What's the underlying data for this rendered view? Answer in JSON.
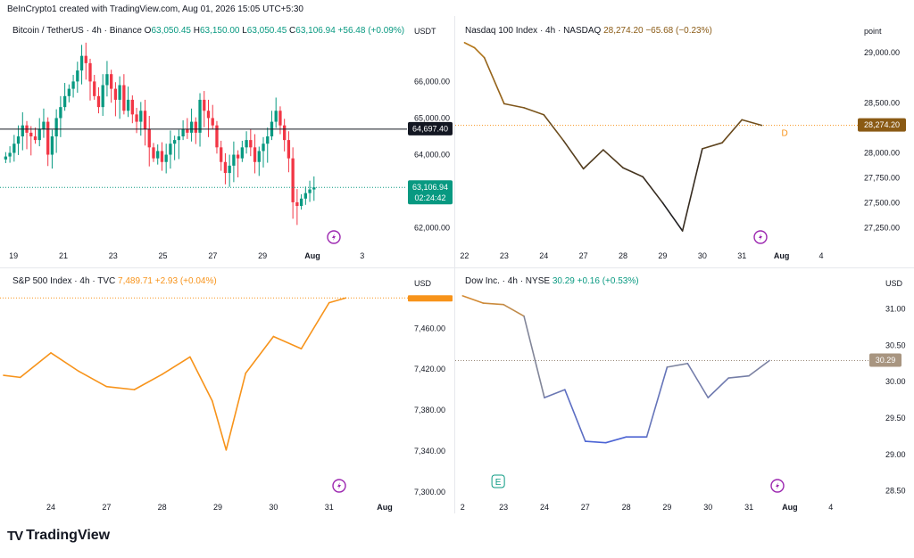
{
  "header": {
    "text": "BeInCrypto1 created with TradingView.com, Aug 01, 2026 15:05 UTC+5:30"
  },
  "footer": {
    "brand": "TradingView",
    "logo": "TV"
  },
  "colors": {
    "up": "#089981",
    "down": "#f23645",
    "orange": "#f7931a",
    "brown": "#8a5a14",
    "text": "#131722"
  },
  "chart_data": [
    {
      "type": "candlestick",
      "legend": {
        "symbol": "Bitcoin / TetherUS · 4h · Binance",
        "o_label": "O",
        "o": "63,050.45",
        "h_label": "H",
        "h": "63,150.00",
        "l_label": "L",
        "l": "63,050.45",
        "c_label": "C",
        "c": "63,106.94",
        "change": "+56.48 (+0.09%)"
      },
      "unit": "USDT",
      "y_ticks": [
        "66,000.00",
        "65,000.00",
        "64,000.00",
        "62,000.00"
      ],
      "y_tick_values": [
        66000,
        65000,
        64000,
        62000
      ],
      "ylim": [
        61700,
        67300
      ],
      "x_ticks": [
        "19",
        "21",
        "23",
        "25",
        "27",
        "29",
        "Aug",
        "3"
      ],
      "x_tick_values": [
        0,
        2,
        4,
        6,
        8,
        10,
        12,
        14
      ],
      "xlim": [
        -0.4,
        15.8
      ],
      "hline": {
        "value": 64697.4,
        "label": "64,697.40"
      },
      "price_line": {
        "value": 63106.94,
        "label": "63,106.94",
        "countdown": "02:24:42"
      },
      "closes": [
        63950,
        64050,
        64300,
        64500,
        64800,
        64600,
        64500,
        64400,
        64700,
        64900,
        64000,
        64500,
        65000,
        65300,
        65600,
        65800,
        66000,
        66300,
        66700,
        66500,
        66000,
        65600,
        65300,
        65900,
        66200,
        65800,
        65500,
        65900,
        65200,
        65500,
        65100,
        64900,
        65200,
        64700,
        64200,
        63900,
        64100,
        63800,
        64000,
        64300,
        64400,
        64500,
        64700,
        64600,
        64900,
        64600,
        65500,
        65200,
        65000,
        64800,
        64200,
        63800,
        63500,
        63700,
        64000,
        63900,
        64200,
        64400,
        64200,
        63800,
        64100,
        64300,
        64500,
        64900,
        65200,
        64800,
        64400,
        63900,
        62700,
        62600,
        62800,
        62950,
        63050,
        63106.94
      ]
    },
    {
      "type": "line",
      "legend": {
        "symbol": "Nasdaq 100 Index · 4h · NASDAQ",
        "value": "28,274.20",
        "change": "−65.68 (−0.23%)"
      },
      "unit": "point",
      "y_ticks": [
        "29,000.00",
        "28,500.00",
        "28,000.00",
        "27,750.00",
        "27,500.00",
        "27,250.00"
      ],
      "y_tick_values": [
        29000,
        28500,
        28000,
        27750,
        27500,
        27250
      ],
      "ylim": [
        27140,
        29170
      ],
      "x_ticks": [
        "22",
        "23",
        "24",
        "27",
        "28",
        "29",
        "30",
        "31",
        "Aug",
        "4"
      ],
      "x_tick_values": [
        0,
        1,
        2,
        3,
        4,
        5,
        6,
        7,
        8,
        9
      ],
      "xlim": [
        -0.1,
        9.9
      ],
      "x": [
        0,
        0.25,
        0.5,
        1,
        1.5,
        2,
        2.5,
        3,
        3.5,
        4,
        4.5,
        5,
        5.5,
        6,
        6.5,
        7,
        7.5
      ],
      "y": [
        29100,
        29050,
        28950,
        28490,
        28450,
        28380,
        28120,
        27840,
        28030,
        27850,
        27760,
        27500,
        27220,
        28040,
        28100,
        28330,
        28274.2
      ],
      "last_label": "28,274.20",
      "event": "D"
    },
    {
      "type": "line",
      "legend": {
        "symbol": "S&P 500 Index · 4h · TVC",
        "value": "7,489.71",
        "change": "+2.93 (+0.04%)"
      },
      "unit": "USD",
      "y_ticks": [
        "7,460.00",
        "7,420.00",
        "7,380.00",
        "7,340.00",
        "7,300.00"
      ],
      "y_tick_values": [
        7460,
        7420,
        7380,
        7340,
        7300
      ],
      "ylim": [
        7299,
        7496
      ],
      "x_ticks": [
        "24",
        "27",
        "28",
        "29",
        "30",
        "31",
        "Aug"
      ],
      "x_tick_values": [
        0,
        1,
        2,
        3,
        4,
        5,
        6
      ],
      "xlim": [
        -0.85,
        6.4
      ],
      "x": [
        -0.85,
        -0.55,
        0,
        0.5,
        1,
        1.5,
        2,
        2.5,
        2.9,
        3.15,
        3.5,
        4,
        4.5,
        5,
        5.3
      ],
      "y": [
        7414,
        7412,
        7436,
        7418,
        7403,
        7400,
        7415,
        7432,
        7389,
        7341,
        7416,
        7452,
        7440,
        7485,
        7489.71
      ]
    },
    {
      "type": "line",
      "legend": {
        "symbol": "Dow Inc. · 4h · NYSE",
        "value": "30.29",
        "change": "+0.16 (+0.53%)"
      },
      "unit": "USD",
      "y_ticks": [
        "31.00",
        "30.50",
        "30.00",
        "29.50",
        "29.00",
        "28.50"
      ],
      "y_tick_values": [
        31,
        30.5,
        30,
        29.5,
        29,
        28.5
      ],
      "ylim": [
        28.47,
        31.24
      ],
      "x_ticks": [
        "2",
        "23",
        "24",
        "27",
        "28",
        "29",
        "30",
        "31",
        "Aug",
        "4"
      ],
      "x_tick_values": [
        0,
        1,
        2,
        3,
        4,
        5,
        6,
        7,
        8,
        9
      ],
      "xlim": [
        -0.05,
        9.9
      ],
      "x": [
        0,
        0.5,
        1,
        1.5,
        2,
        2.5,
        3,
        3.5,
        4,
        4.5,
        5,
        5.5,
        6,
        6.5,
        7,
        7.5
      ],
      "y": [
        31.18,
        31.08,
        31.06,
        30.9,
        29.78,
        29.89,
        29.18,
        29.16,
        29.24,
        29.24,
        30.2,
        30.25,
        29.78,
        30.05,
        30.08,
        30.29
      ],
      "last_label": "30.29",
      "event": "E"
    }
  ]
}
